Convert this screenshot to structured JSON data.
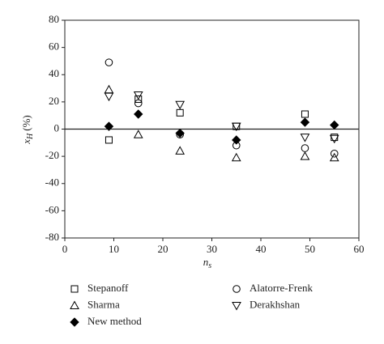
{
  "chart_data": {
    "type": "scatter",
    "xlabel": "n",
    "xlabel_sub": "s",
    "ylabel": "x",
    "ylabel_sub": "H",
    "ylabel_unit": "(%)",
    "xlim": [
      0,
      60
    ],
    "xticks": [
      0,
      10,
      20,
      30,
      40,
      50,
      60
    ],
    "ylim": [
      -80,
      80
    ],
    "yticks": [
      -80,
      -60,
      -40,
      -20,
      0,
      20,
      40,
      60,
      80
    ],
    "reference_line": 0,
    "legend": "bottom",
    "series": [
      {
        "name": "Stepanoff",
        "color": "#000000",
        "marker": "square",
        "filled": false,
        "x": [
          9,
          15,
          23.5,
          35,
          49,
          55
        ],
        "values": [
          -8,
          22,
          12,
          2,
          11,
          -6
        ]
      },
      {
        "name": "Sharma",
        "color": "#000000",
        "marker": "triangle-up",
        "filled": false,
        "x": [
          9,
          15,
          23.5,
          35,
          49,
          55
        ],
        "values": [
          29,
          -4,
          -16,
          -21,
          -20,
          -21
        ]
      },
      {
        "name": "New method",
        "color": "#000000",
        "marker": "diamond",
        "filled": true,
        "x": [
          9,
          15,
          23.5,
          35,
          49,
          55
        ],
        "values": [
          2,
          11,
          -3,
          -8,
          5,
          3
        ]
      },
      {
        "name": "Alatorre-Frenk",
        "color": "#000000",
        "marker": "circle",
        "filled": false,
        "x": [
          9,
          15,
          23.5,
          35,
          49,
          55
        ],
        "values": [
          49,
          19,
          -4,
          -12,
          -14,
          -18
        ]
      },
      {
        "name": "Derakhshan",
        "color": "#000000",
        "marker": "triangle-down",
        "filled": false,
        "x": [
          9,
          15,
          23.5,
          35,
          49,
          55
        ],
        "values": [
          24,
          25,
          18,
          2,
          -6,
          -7
        ]
      }
    ]
  }
}
